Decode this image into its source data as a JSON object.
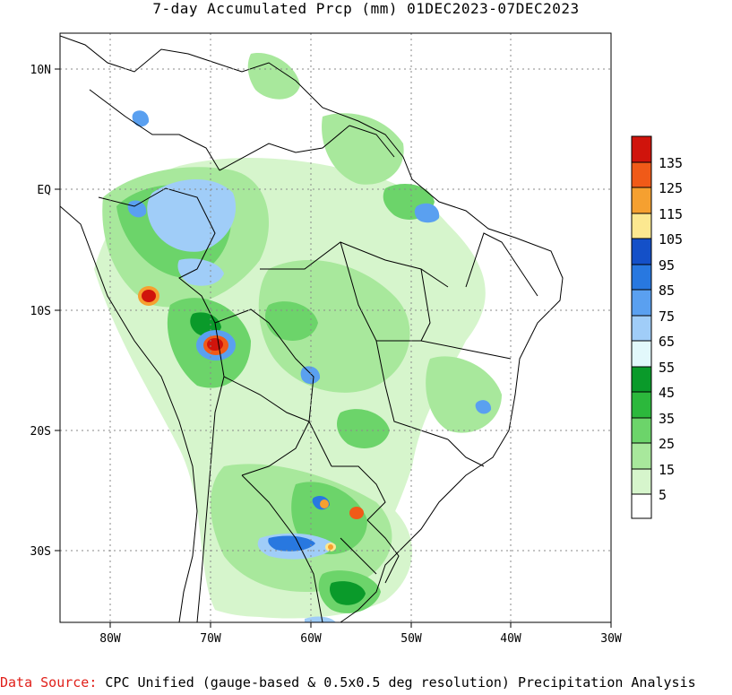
{
  "title": "7-day Accumulated Prcp (mm) 01DEC2023-07DEC2023",
  "x_ticks": [
    "80W",
    "70W",
    "60W",
    "50W",
    "40W",
    "30W"
  ],
  "y_ticks": [
    "10N",
    "EQ",
    "10S",
    "20S",
    "30S"
  ],
  "legend": {
    "labels": [
      "135",
      "125",
      "115",
      "105",
      "95",
      "85",
      "75",
      "65",
      "55",
      "45",
      "35",
      "25",
      "15",
      "5"
    ],
    "colors": [
      "#d0140c",
      "#f05a18",
      "#f5a030",
      "#fce890",
      "#1450c8",
      "#2878e0",
      "#5aa0f0",
      "#a0cdf8",
      "#e2f8fb",
      "#0a9a2a",
      "#2cb83c",
      "#6cd46a",
      "#a8e89c",
      "#d6f5cc",
      "#ffffff"
    ]
  },
  "footer": {
    "source_label": "Data Source:",
    "source_text": "CPC Unified (gauge-based & 0.5x0.5 deg resolution) Precipitation Analysis"
  },
  "map_colors": {
    "land_background": "#ffffff",
    "border": "#000000",
    "grid": "#8a8a8a"
  },
  "map_extent": {
    "lon": [
      -85,
      -30
    ],
    "lat": [
      -36,
      13
    ]
  }
}
